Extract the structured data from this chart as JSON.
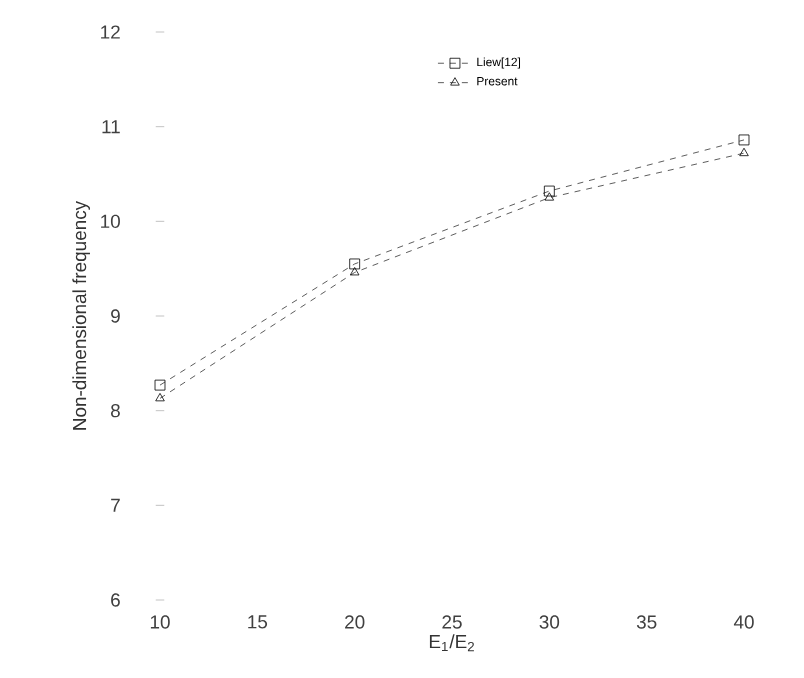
{
  "chart_data": {
    "type": "line",
    "xlabel": "E$_{1}$/E$_{2}$",
    "ylabel": "Non-dimensional frequency",
    "x": [
      10,
      20,
      30,
      40
    ],
    "series": [
      {
        "name": "Liew[12]",
        "color": "#333333",
        "marker": "square",
        "values": [
          8.27,
          9.55,
          10.32,
          10.86
        ]
      },
      {
        "name": "Present",
        "color": "#333333",
        "marker": "triangle",
        "values": [
          8.13,
          9.46,
          10.25,
          10.72
        ]
      }
    ],
    "xlim": [
      10,
      40
    ],
    "xticks": [
      10,
      15,
      20,
      25,
      30,
      35,
      40
    ],
    "ylim": [
      6,
      12
    ],
    "yticks": [
      6,
      7,
      8,
      9,
      10,
      11,
      12
    ],
    "line_style": "dashed",
    "legend": "top"
  }
}
